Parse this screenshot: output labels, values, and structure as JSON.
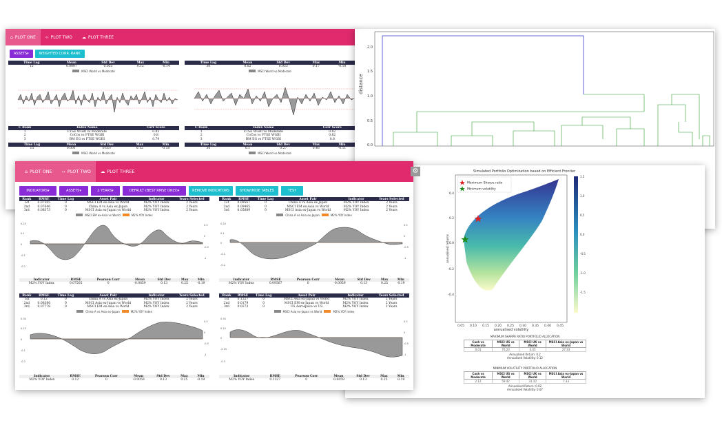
{
  "back_window": {
    "tabs": [
      "PLOT ONE",
      "PLOT TWO",
      "PLOT THREE"
    ],
    "buttons": [
      "ASSETS",
      "WEIGHTED CORR. RANK"
    ],
    "panels": [
      {
        "stats_headers": [
          "Time Lag",
          "Mean",
          "Std Dev",
          "Max",
          "Min"
        ],
        "stats_row": [
          "15",
          "0.0007",
          "0.053",
          "0.12",
          "-0.14"
        ],
        "legend": "MSCI World vs Moderate",
        "rank_headers": [
          "C Rank",
          "Index Name",
          "Corr Score"
        ],
        "rank_rows": [
          [
            "1",
            "FTSE WGBI vs Moderate",
            "0.85"
          ],
          [
            "2",
            "CoCos vs FTSE WGBI",
            "0.8"
          ],
          [
            "3",
            "BM EG vs FTSE WGBI",
            "0.79"
          ]
        ],
        "stats2_row": [
          "15",
          "0.001",
          "0.057",
          "0.12",
          "-0.18"
        ]
      },
      {
        "stats_headers": [
          "Time Lag",
          "Mean",
          "Std Dev",
          "Max",
          "Min"
        ],
        "stats_row": [
          "30",
          "0.02",
          "0.053",
          "0.17",
          "-0.18"
        ],
        "legend": "MSCI World vs Moderate",
        "rank_headers": [
          "C Rank",
          "Index Name",
          "Corr Score"
        ],
        "rank_rows": [
          [
            "1",
            "FTSE WGBI vs Moderate",
            "0.82"
          ],
          [
            "2",
            "CoCos vs FTSE WGBI",
            "0.82"
          ],
          [
            "3",
            "BM EG vs FTSE WGBI",
            "0.8"
          ]
        ],
        "stats2_row": [
          "30",
          "0.1",
          "0.27",
          "0.46",
          "-0.11"
        ]
      }
    ]
  },
  "front_window": {
    "tabs": [
      "PLOT ONE",
      "PLOT TWO",
      "PLOT THREE"
    ],
    "buttons": [
      "INDICATORS",
      "ASSETS",
      "2 YEARS",
      "DEFAULT (BEST RMSE ONLY)",
      "REMOVE INDICATORS",
      "SHOW/HIDE TABLES",
      "TEST"
    ],
    "rank_headers": [
      "Rank",
      "RMSE",
      "Time Lag",
      "Asset Pair",
      "Indicator",
      "Years Selected"
    ],
    "summary_headers": [
      "Indicator",
      "RMSE",
      "Pearson Corr",
      "Mean",
      "Std Dev",
      "Max",
      "Min"
    ],
    "panels": [
      {
        "rows": [
          [
            "1st",
            "0.07505",
            "0",
            "MSCI EM ex-Asia vs World",
            "M2% YOY Index",
            "2 Years"
          ],
          [
            "2nd",
            "0.07646",
            "0",
            "China A vs Asia ex-Japan",
            "M2% YOY Index",
            "2 Years"
          ],
          [
            "3rd",
            "0.08373",
            "0",
            "MSCI Asia ex-Japan vs World",
            "M2% YOY Index",
            "2 Years"
          ]
        ],
        "legend_a": "MSCI EM ex-Asia vs World",
        "legend_b": "M2% YOY Index",
        "summary": [
          "M2% YOY Index",
          "0.07505",
          "0",
          "-0.0059",
          "0.13",
          "0.25",
          "-0.19"
        ]
      },
      {
        "rows": [
          [
            "1st",
            "0.09567",
            "0",
            "China A vs Asia ex-Japan",
            "M2% YOY Index",
            "2 Years"
          ],
          [
            "2nd",
            "0.09465",
            "0",
            "MSCI EM ex-Asia vs World",
            "M2% YOY Index",
            "2 Years"
          ],
          [
            "3rd",
            "0.05889",
            "0",
            "MSCI Asia ex-Japan vs World",
            "M2% YOY Index",
            "2 Years"
          ]
        ],
        "legend_a": "China A vs Asia ex-Japan",
        "legend_b": "M2% YOY Index",
        "summary": [
          "M2% YOY Index",
          "0.09567",
          "0",
          "-0.0059",
          "0.13",
          "0.25",
          "-0.19"
        ]
      },
      {
        "rows": [
          [
            "1st",
            "0.12",
            "0",
            "China A vs Asia ex-Japan",
            "M2% YOY Index",
            "2 Years"
          ],
          [
            "2nd",
            "0.08386",
            "0",
            "MSCI Asia ex-Japan vs World",
            "M2% YOY Index",
            "2 Years"
          ],
          [
            "3rd",
            "0.07778",
            "0",
            "MSCI EM ex-Asia vs World",
            "M2% YOY Index",
            "2 Years"
          ]
        ],
        "legend_a": "China A vs Asia ex-Japan",
        "legend_b": "M2% YOY Index",
        "summary": [
          "M2% YOY Index",
          "0.12",
          "0",
          "-0.0059",
          "0.13",
          "0.25",
          "-0.19"
        ]
      },
      {
        "rows": [
          [
            "1st",
            "0.1327",
            "0",
            "MSCI Asia ex-Japan vs World",
            "M2% YOY Index",
            "2 Years"
          ],
          [
            "2nd",
            "0.0179",
            "0",
            "MSCI EM ex-Japan vs World",
            "M2% YOY Index",
            "2 Years"
          ],
          [
            "3rd",
            "0.0273",
            "0",
            "US Aerospace vs US",
            "M2% YOY Index",
            "2 Years"
          ]
        ],
        "legend_a": "MSCI Asia ex-Japan vs World",
        "legend_b": "M2% YOY Index",
        "summary": [
          "M2% YOY Index",
          "0.1327",
          "0",
          "-0.0059",
          "0.13",
          "0.25",
          "-0.19"
        ]
      }
    ]
  },
  "dendrogram": {
    "ylabel": "distance",
    "yticks": [
      "2.0",
      "1.5",
      "1.0",
      "0.5",
      "0.0"
    ],
    "colors": {
      "top": "#3a3ad0",
      "cluster": "#2a9d2a"
    }
  },
  "frontier": {
    "title": "Simulated Portfolio Optimization based on Efficient Frontier",
    "xlabel": "annualised volatility",
    "ylabel": "annualised returns",
    "legend": [
      "Maximum Sharpe ratio",
      "Minimum volatility"
    ],
    "xticks": [
      "0.05",
      "0.10",
      "0.15",
      "0.20",
      "0.25",
      "0.30",
      "0.35",
      "0.40",
      "0.45"
    ],
    "yticks": [
      "0.4",
      "0.2",
      "0.0",
      "-0.2",
      "-0.4"
    ],
    "cbar_ticks": [
      "1.5",
      "1.0",
      "0.5",
      "0.0",
      "-0.5",
      "-1.0",
      "-1.5"
    ],
    "max_sharpe": {
      "title": "MAXIMUM SHARPE RATIO PORTFOLIO ALLOCATION",
      "headers": [
        "Cash vs Moderate",
        "MSCI US vs World",
        "MSCI UK vs World",
        "MSCI Asia ex-Japan vs World"
      ],
      "values": [
        "0.01",
        "70.23",
        "0.45",
        "27.33"
      ],
      "ret": "Annualised Return: 0.2",
      "vol": "Annualised Volatility: 0.12"
    },
    "min_vol": {
      "title": "MINIMUM VOLATILITY PORTFOLIO ALLOCATION",
      "headers": [
        "Cash vs Moderate",
        "MSCI US vs World",
        "MSCI UK vs World",
        "MSCI Asia ex-Japan vs World"
      ],
      "values": [
        "2.12",
        "59.42",
        "31.10",
        "7.33"
      ],
      "ret": "Annualised Return: 0.02",
      "vol": "Annualised Volatility: 0.07"
    }
  }
}
